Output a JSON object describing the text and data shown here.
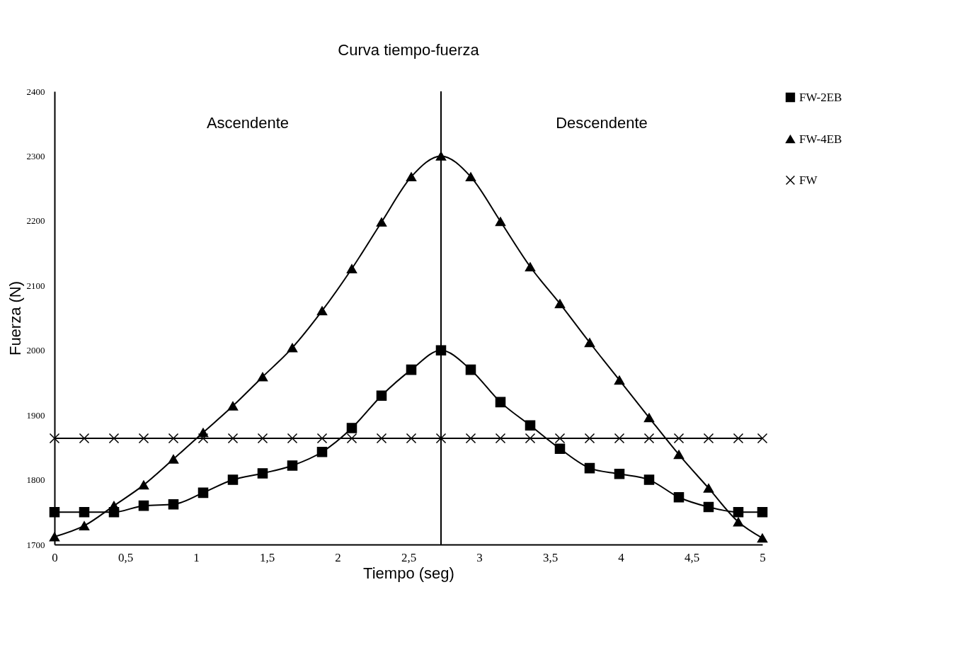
{
  "chart_data": {
    "type": "line",
    "title": "Curva tiempo-fuerza",
    "xlabel": "Tiempo (seg)",
    "ylabel": "Fuerza (N)",
    "x": [
      0,
      0.21,
      0.42,
      0.63,
      0.84,
      1.05,
      1.26,
      1.47,
      1.68,
      1.89,
      2.1,
      2.31,
      2.52,
      2.73,
      2.94,
      3.15,
      3.36,
      3.57,
      3.78,
      3.99,
      4.2,
      4.41,
      4.62,
      4.83,
      5
    ],
    "series": [
      {
        "name": "FW-2EB",
        "color": "#000000",
        "marker": "square",
        "values": [
          1750,
          1750,
          1750,
          1760,
          1762,
          1780,
          1800,
          1810,
          1822,
          1843,
          1880,
          1930,
          1970,
          2000,
          1970,
          1920,
          1884,
          1848,
          1818,
          1809,
          1800,
          1773,
          1758,
          1750,
          1750
        ]
      },
      {
        "name": "FW-4EB",
        "color": "#000000",
        "marker": "triangle",
        "values": [
          1712,
          1729,
          1760,
          1792,
          1832,
          1873,
          1914,
          1959,
          2004,
          2061,
          2126,
          2198,
          2268,
          2300,
          2268,
          2199,
          2129,
          2072,
          2012,
          1954,
          1896,
          1839,
          1787,
          1735,
          1710
        ]
      },
      {
        "name": "FW",
        "color": "#000000",
        "marker": "cross",
        "values": [
          1864,
          1864,
          1864,
          1864,
          1864,
          1864,
          1864,
          1864,
          1864,
          1864,
          1864,
          1864,
          1864,
          1864,
          1864,
          1864,
          1864,
          1864,
          1864,
          1864,
          1864,
          1864,
          1864,
          1864,
          1864
        ]
      }
    ],
    "xlim": [
      0,
      5
    ],
    "xticks": [
      0,
      {
        "value": 0.5,
        "label": "0,5"
      },
      1,
      {
        "value": 1.5,
        "label": "1,5"
      },
      2,
      {
        "value": 2.5,
        "label": "2,5"
      },
      3,
      {
        "value": 3.5,
        "label": "3,5"
      },
      4,
      {
        "value": 4.5,
        "label": "4,5"
      },
      5
    ],
    "ylim": [
      1700,
      2400
    ],
    "yticks": [
      1700,
      1800,
      1900,
      2000,
      2100,
      2200,
      2300,
      2400
    ],
    "ref_lines": [
      {
        "axis": "x",
        "value": 2.73,
        "label": null
      }
    ],
    "annotations": [
      "Ascendente",
      "Descendente"
    ],
    "grid": false,
    "legend": "top right",
    "line_style": "solid"
  }
}
